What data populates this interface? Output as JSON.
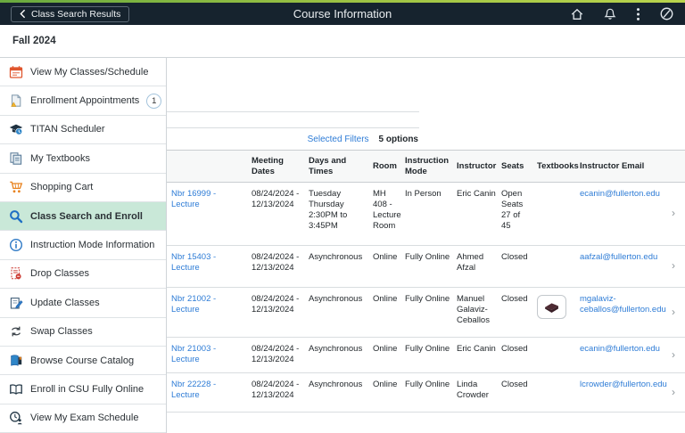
{
  "header": {
    "back_label": "Class Search Results",
    "title": "Course Information"
  },
  "term": "Fall 2024",
  "sidebar": {
    "items": [
      {
        "label": "View My Classes/Schedule",
        "icon": "calendar"
      },
      {
        "label": "Enrollment Appointments",
        "icon": "enrollment-doc",
        "badge": "1"
      },
      {
        "label": "TITAN Scheduler",
        "icon": "grad-cap"
      },
      {
        "label": "My Textbooks",
        "icon": "pages"
      },
      {
        "label": "Shopping Cart",
        "icon": "cart"
      },
      {
        "label": "Class Search and Enroll",
        "icon": "magnifier",
        "selected": true
      },
      {
        "label": "Instruction Mode Information",
        "icon": "info"
      },
      {
        "label": "Drop Classes",
        "icon": "drop-doc"
      },
      {
        "label": "Update Classes",
        "icon": "edit-doc"
      },
      {
        "label": "Swap Classes",
        "icon": "swap-arrows"
      },
      {
        "label": "Browse Course Catalog",
        "icon": "catalog-book"
      },
      {
        "label": "Enroll in CSU Fully Online",
        "icon": "open-book"
      },
      {
        "label": "View My Exam Schedule",
        "icon": "exam-clock"
      }
    ]
  },
  "filters": {
    "selected_filters_label": "Selected Filters",
    "options_count": "5 options"
  },
  "table": {
    "columns": [
      "",
      "Meeting Dates",
      "Days and Times",
      "Room",
      "Instruction Mode",
      "Instructor",
      "Seats",
      "Textbooks",
      "Instructor Email"
    ],
    "rows": [
      {
        "class_link": "Nbr 16999 - Lecture",
        "meeting_dates": "08/24/2024 - 12/13/2024",
        "days_times": "Tuesday Thursday 2:30PM to 3:45PM",
        "room": "MH 408 - Lecture Room",
        "instruction_mode": "In Person",
        "instructor": "Eric Canin",
        "seats": "Open Seats 27 of 45",
        "has_textbook_button": false,
        "email": "ecanin@fullerton.edu"
      },
      {
        "class_link": "Nbr 15403 - Lecture",
        "meeting_dates": "08/24/2024 - 12/13/2024",
        "days_times": "Asynchronous",
        "room": "Online",
        "instruction_mode": "Fully Online",
        "instructor": "Ahmed Afzal",
        "seats": "Closed",
        "has_textbook_button": false,
        "email": "aafzal@fullerton.edu"
      },
      {
        "class_link": "Nbr 21002 - Lecture",
        "meeting_dates": "08/24/2024 - 12/13/2024",
        "days_times": "Asynchronous",
        "room": "Online",
        "instruction_mode": "Fully Online",
        "instructor": "Manuel Galaviz-Ceballos",
        "seats": "Closed",
        "has_textbook_button": true,
        "email": "mgalaviz-ceballos@fullerton.edu"
      },
      {
        "class_link": "Nbr 21003 - Lecture",
        "meeting_dates": "08/24/2024 - 12/13/2024",
        "days_times": "Asynchronous",
        "room": "Online",
        "instruction_mode": "Fully Online",
        "instructor": "Eric Canin",
        "seats": "Closed",
        "has_textbook_button": false,
        "email": "ecanin@fullerton.edu"
      },
      {
        "class_link": "Nbr 22228 - Lecture",
        "meeting_dates": "08/24/2024 - 12/13/2024",
        "days_times": "Asynchronous",
        "room": "Online",
        "instruction_mode": "Fully Online",
        "instructor": "Linda Crowder",
        "seats": "Closed",
        "has_textbook_button": false,
        "email": "lcrowder@fullerton.edu"
      }
    ]
  },
  "colors": {
    "navbar_bg": "#16232e",
    "brand_strip": "#9cc243",
    "selected_item_bg": "#c9e8d8",
    "link_blue": "#2e7cd6"
  }
}
